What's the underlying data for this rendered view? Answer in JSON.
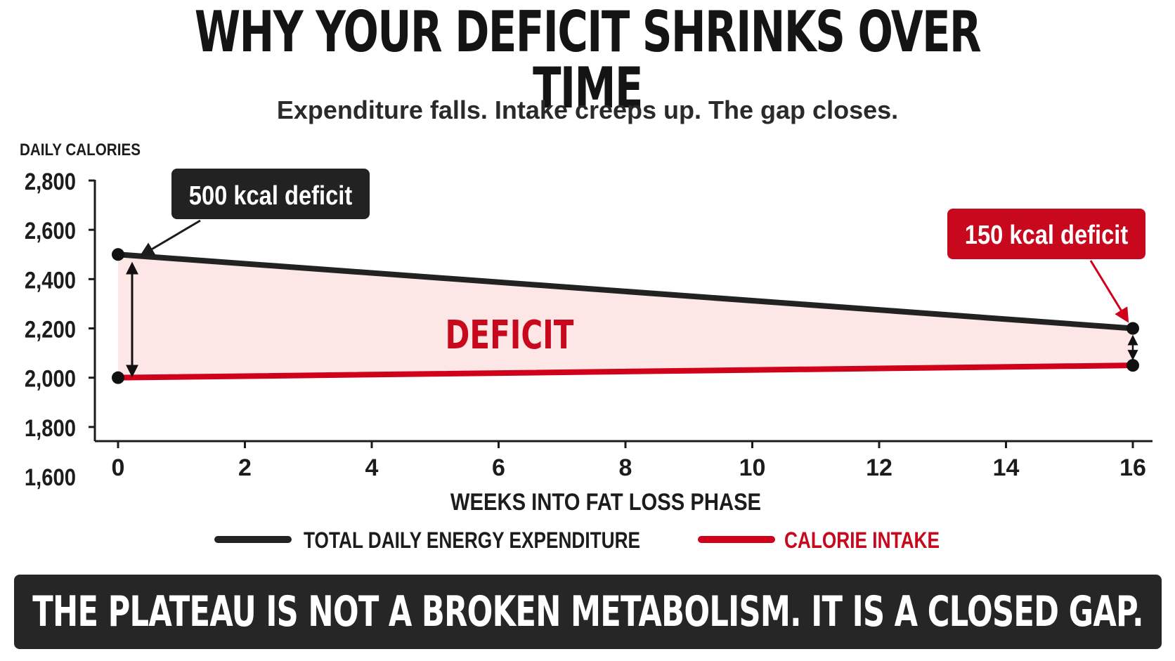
{
  "title": "WHY YOUR DEFICIT SHRINKS OVER TIME",
  "subtitle": "Expenditure falls. Intake creeps up. The gap closes.",
  "chart_data": {
    "type": "line",
    "ylabel": "DAILY CALORIES",
    "xlabel": "WEEKS INTO FAT LOSS PHASE",
    "x": [
      0,
      16
    ],
    "xticks": [
      0,
      2,
      4,
      6,
      8,
      10,
      12,
      14,
      16
    ],
    "yticks": [
      1600,
      1800,
      2000,
      2200,
      2400,
      2600,
      2800
    ],
    "ytick_labels": [
      "1,600",
      "1,800",
      "2,000",
      "2,200",
      "2,400",
      "2,600",
      "2,800"
    ],
    "xlim": [
      0,
      16
    ],
    "ylim": [
      1600,
      2800
    ],
    "series": [
      {
        "name": "TOTAL DAILY ENERGY EXPENDITURE",
        "color": "#222222",
        "values": [
          2500,
          2200
        ]
      },
      {
        "name": "CALORIE INTAKE",
        "color": "#d0021b",
        "values": [
          2000,
          2050
        ]
      }
    ],
    "fill_between_label": "DEFICIT",
    "fill_color": "#fde6e6",
    "annotations": [
      {
        "text": "500 kcal deficit",
        "x": 0,
        "style": "dark"
      },
      {
        "text": "150 kcal deficit",
        "x": 16,
        "style": "red"
      }
    ],
    "legend_position": "bottom",
    "grid": false
  },
  "banner": "THE PLATEAU IS NOT A BROKEN METABOLISM. IT IS A CLOSED GAP."
}
